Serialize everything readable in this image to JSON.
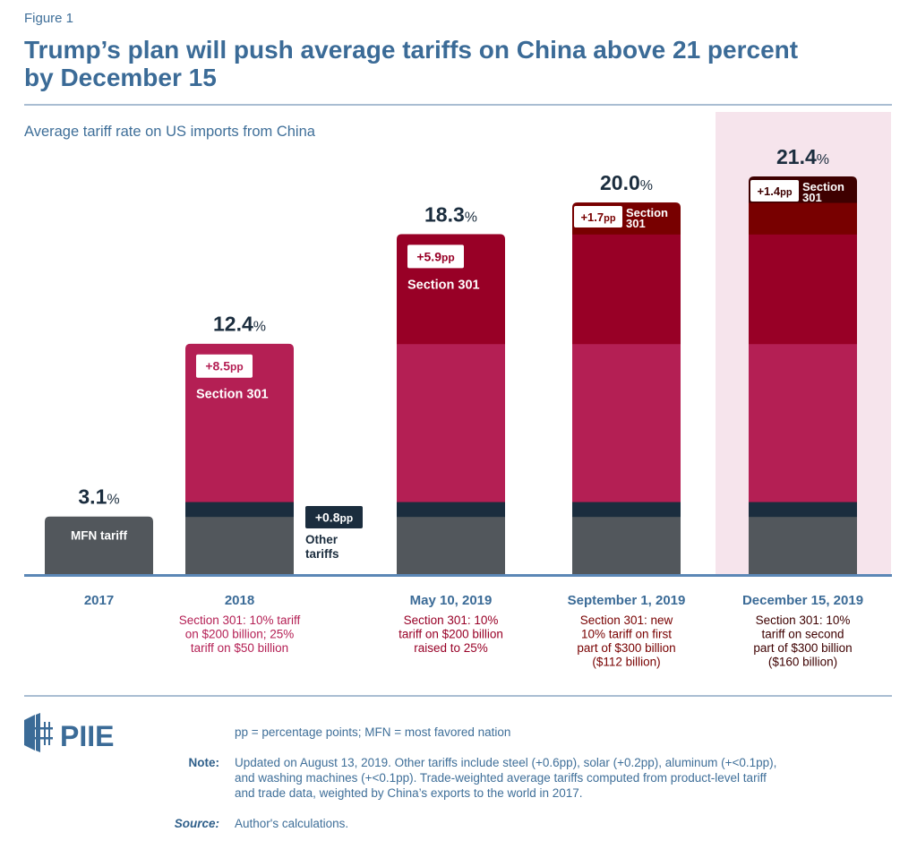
{
  "figure_label": "Figure 1",
  "title": "Trump’s plan will push average tariffs on China above 21 percent by December 15",
  "subtitle": "Average tariff rate on US imports from China",
  "colors": {
    "mfn": "#52575c",
    "other": "#1b2d3e",
    "s301_2018": "#b41f54",
    "s301_may": "#980026",
    "s301_sep": "#780000",
    "s301_dec": "#3e0000",
    "highlight": "#f6e4ec",
    "axis": "#5b87b6",
    "total_label": "#1b2d3e",
    "category_label": "#3b6b97"
  },
  "chart_data": {
    "type": "bar",
    "stacked": true,
    "title": "Trump’s plan will push average tariffs on China above 21 percent by December 15",
    "ylabel": "Average tariff rate on US imports from China (%)",
    "ylim": [
      0,
      21.4
    ],
    "grid": false,
    "categories": [
      "2017",
      "2018",
      "May 10, 2019",
      "September 1, 2019",
      "December 15, 2019"
    ],
    "category_notes": [
      "",
      "Section 301: 10% tariff on $200 billion; 25% tariff on $50 billion",
      "Section 301: 10% tariff on $200 billion raised to 25%",
      "Section 301: new 10% tariff on first part of $300 billion ($112 billion)",
      "Section 301: 10% tariff on second part of $300 billion ($160 billion)"
    ],
    "note_colors": [
      "#3b6b97",
      "#b41f54",
      "#980026",
      "#780000",
      "#3e0000"
    ],
    "highlighted_category": "December 15, 2019",
    "series": [
      {
        "name": "MFN tariff",
        "color_key": "mfn",
        "values": [
          3.1,
          3.1,
          3.1,
          3.1,
          3.1
        ]
      },
      {
        "name": "Other tariffs",
        "color_key": "other",
        "values": [
          0,
          0.8,
          0.8,
          0.8,
          0.8
        ]
      },
      {
        "name": "Section 301 (2018)",
        "color_key": "s301_2018",
        "values": [
          0,
          8.5,
          8.5,
          8.5,
          8.5
        ]
      },
      {
        "name": "Section 301 (May 10, 2019)",
        "color_key": "s301_may",
        "values": [
          0,
          0,
          5.9,
          5.9,
          5.9
        ]
      },
      {
        "name": "Section 301 (September 1, 2019)",
        "color_key": "s301_sep",
        "values": [
          0,
          0,
          0,
          1.7,
          1.7
        ]
      },
      {
        "name": "Section 301 (December 15, 2019)",
        "color_key": "s301_dec",
        "values": [
          0,
          0,
          0,
          0,
          1.4
        ]
      }
    ],
    "totals": [
      "3.1",
      "12.4",
      "18.3",
      "20.0",
      "21.4"
    ],
    "total_suffix": "%",
    "annotations": [
      {
        "category": 0,
        "kind": "inside",
        "text": "MFN tariff"
      },
      {
        "category": 1,
        "kind": "badge",
        "value": "+8.5",
        "unit": "pp",
        "label": "Section 301"
      },
      {
        "category": 1,
        "kind": "side-badge",
        "value": "+0.8",
        "unit": "pp",
        "label_lines": [
          "Other",
          "tariffs"
        ]
      },
      {
        "category": 2,
        "kind": "badge",
        "value": "+5.9",
        "unit": "pp",
        "label": "Section 301"
      },
      {
        "category": 3,
        "kind": "inline-badge",
        "value": "+1.7",
        "unit": "pp",
        "label_lines": [
          "Section",
          "301"
        ]
      },
      {
        "category": 4,
        "kind": "inline-badge",
        "value": "+1.4",
        "unit": "pp",
        "label_lines": [
          "Section",
          "301"
        ]
      }
    ]
  },
  "footer": {
    "logo_text": "PIIE",
    "abbrev": "pp = percentage points; MFN = most favored nation",
    "note_label": "Note:",
    "note_lines": [
      "Updated on August 13, 2019. Other tariffs include steel (+0.6pp), solar (+0.2pp), aluminum (+<0.1pp),",
      "and washing machines (+<0.1pp). Trade-weighted average tariffs computed from product-level tariff",
      "and trade data, weighted by China’s exports to the world in 2017."
    ],
    "source_label": "Source:",
    "source_text": "Author's calculations."
  }
}
